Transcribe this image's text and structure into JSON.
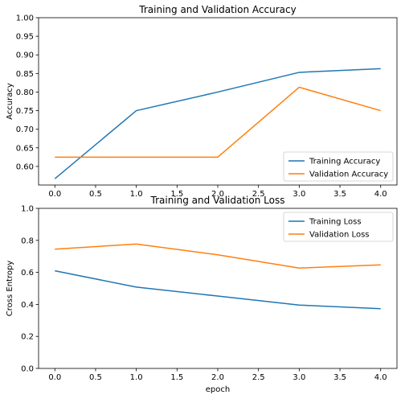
{
  "chart_data": [
    {
      "type": "line",
      "title": "Training and Validation Accuracy",
      "xlabel": "",
      "ylabel": "Accuracy",
      "x": [
        0,
        1,
        2,
        3,
        4
      ],
      "xlim": [
        -0.2,
        4.2
      ],
      "ylim": [
        0.55,
        1.0
      ],
      "xticks": [
        "0.0",
        "0.5",
        "1.0",
        "1.5",
        "2.0",
        "2.5",
        "3.0",
        "3.5",
        "4.0"
      ],
      "yticks": [
        "0.60",
        "0.65",
        "0.70",
        "0.75",
        "0.80",
        "0.85",
        "0.90",
        "0.95",
        "1.00"
      ],
      "grid": false,
      "legend": "lower-right",
      "series": [
        {
          "name": "Training Accuracy",
          "color": "#1f77b4",
          "values": [
            0.567,
            0.75,
            0.8,
            0.853,
            0.863
          ]
        },
        {
          "name": "Validation Accuracy",
          "color": "#ff7f0e",
          "values": [
            0.625,
            0.625,
            0.625,
            0.813,
            0.75
          ]
        }
      ]
    },
    {
      "type": "line",
      "title": "Training and Validation Loss",
      "xlabel": "epoch",
      "ylabel": "Cross Entropy",
      "x": [
        0,
        1,
        2,
        3,
        4
      ],
      "xlim": [
        -0.2,
        4.2
      ],
      "ylim": [
        0.0,
        1.0
      ],
      "xticks": [
        "0.0",
        "0.5",
        "1.0",
        "1.5",
        "2.0",
        "2.5",
        "3.0",
        "3.5",
        "4.0"
      ],
      "yticks": [
        "0.0",
        "0.2",
        "0.4",
        "0.6",
        "0.8",
        "1.0"
      ],
      "grid": false,
      "legend": "top-right",
      "series": [
        {
          "name": "Training Loss",
          "color": "#1f77b4",
          "values": [
            0.61,
            0.508,
            0.452,
            0.396,
            0.373
          ]
        },
        {
          "name": "Validation Loss",
          "color": "#ff7f0e",
          "values": [
            0.745,
            0.777,
            0.71,
            0.627,
            0.647
          ]
        }
      ]
    }
  ]
}
